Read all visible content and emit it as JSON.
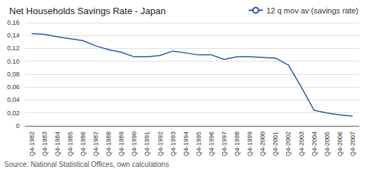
{
  "chart_data": {
    "type": "line",
    "title": "Net Households Savings Rate - Japan",
    "annotation": "Source: National Statistical Offices, own calculations",
    "categories": [
      "Q4-1982",
      "Q4-1983",
      "Q4-1984",
      "Q4-1985",
      "Q4-1986",
      "Q4-1987",
      "Q4-1988",
      "Q4-1989",
      "Q4-1990",
      "Q4-1991",
      "Q4-1992",
      "Q4-1993",
      "Q4-1994",
      "Q4-1995",
      "Q4-1996",
      "Q4-1997",
      "Q4-1998",
      "Q4-1999",
      "Q4-2000",
      "Q4-2001",
      "Q4-2002",
      "Q4-2003",
      "Q4-2004",
      "Q4-2005",
      "Q4-2006",
      "Q4-2007"
    ],
    "series": [
      {
        "name": "12 q mov av (savings rate)",
        "color": "#2255a4",
        "values": [
          0.143,
          0.142,
          0.138,
          0.135,
          0.132,
          0.124,
          0.118,
          0.114,
          0.107,
          0.107,
          0.109,
          0.116,
          0.113,
          0.11,
          0.11,
          0.103,
          0.107,
          0.107,
          0.106,
          0.105,
          0.094,
          0.06,
          0.024,
          0.02,
          0.017,
          0.015
        ]
      }
    ],
    "ylim": [
      0,
      0.16
    ],
    "yticks": [
      0,
      {
        "value": 0.02,
        "label": "0,02"
      },
      {
        "value": 0.04,
        "label": "0,04"
      },
      {
        "value": 0.06,
        "label": "0,06"
      },
      {
        "value": 0.08,
        "label": "0,08"
      },
      {
        "value": 0.1,
        "label": "0,10"
      },
      {
        "value": 0.12,
        "label": "0,12"
      },
      {
        "value": 0.14,
        "label": "0,14"
      },
      {
        "value": 0.16,
        "label": "0,16"
      }
    ],
    "grid": true,
    "legend": "upper right"
  }
}
